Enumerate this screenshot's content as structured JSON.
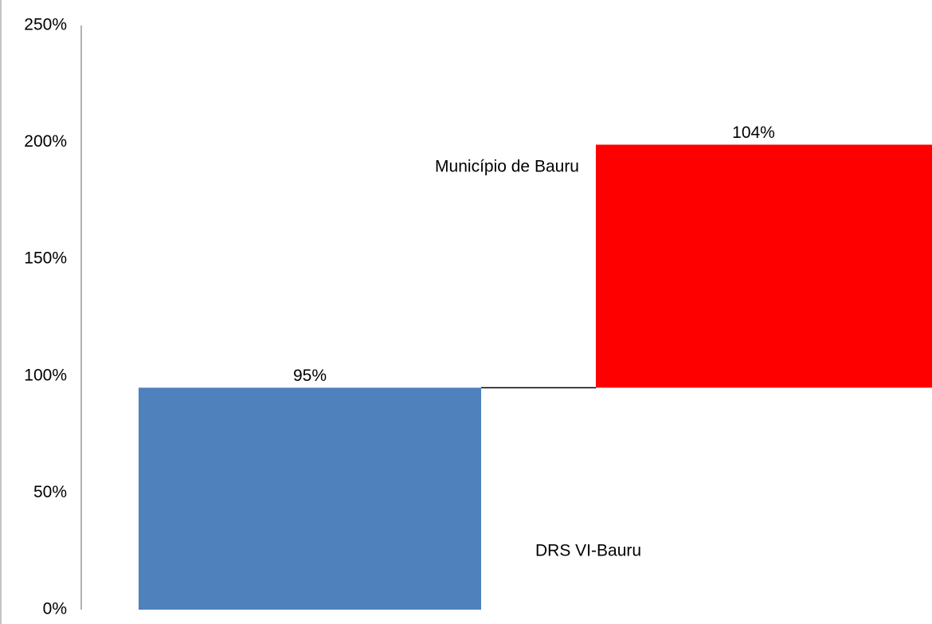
{
  "chart_data": {
    "type": "waterfall",
    "categories": [
      "DRS VI-Bauru",
      "Município de Bauru"
    ],
    "values": [
      95,
      104
    ],
    "value_labels": [
      "95%",
      "104%"
    ],
    "colors": [
      "#4f81bd",
      "#ff0000"
    ],
    "ylim": [
      0,
      250
    ],
    "yticks": [
      {
        "value": 0,
        "label": "0%"
      },
      {
        "value": 50,
        "label": "50%"
      },
      {
        "value": 100,
        "label": "100%"
      },
      {
        "value": 150,
        "label": "150%"
      },
      {
        "value": 200,
        "label": "200%"
      },
      {
        "value": 250,
        "label": "250%"
      }
    ]
  }
}
